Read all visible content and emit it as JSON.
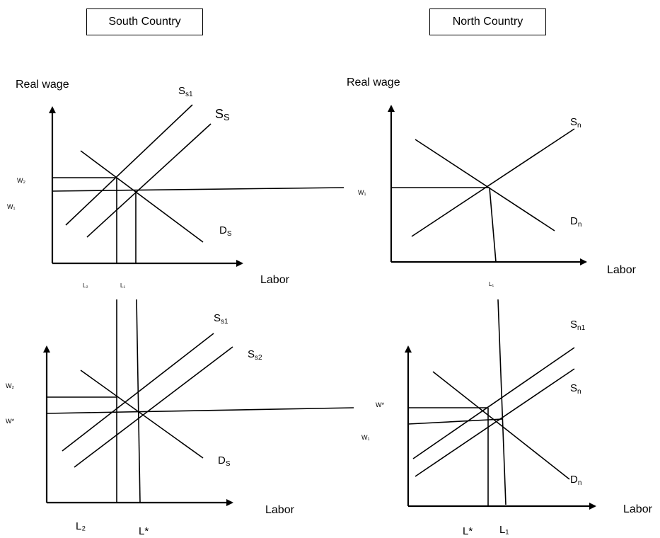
{
  "titles": {
    "south": "South Country",
    "north": "North Country"
  },
  "axes": {
    "y_label": "Real wage",
    "x_label": "Labor"
  },
  "south_top": {
    "supply1": {
      "main": "S",
      "sub": "s1"
    },
    "supply0": {
      "main": "S",
      "sub": "S"
    },
    "demand": {
      "main": "D",
      "sub": "S"
    },
    "w_high": "W₂",
    "w_low": "W₁",
    "l_left": "L₂",
    "l_right": "L₁"
  },
  "north_top": {
    "supply": {
      "main": "S",
      "sub": "n"
    },
    "demand": {
      "main": "D",
      "sub": "n"
    },
    "w": "W₁",
    "l": "L₁"
  },
  "south_bottom": {
    "supply1": {
      "main": "S",
      "sub": "s1"
    },
    "supply2": {
      "main": "S",
      "sub": "s2"
    },
    "demand": {
      "main": "D",
      "sub": "S"
    },
    "w_high": "W₂",
    "w_low": "W*",
    "l_left": "L₂",
    "l_right": "L*"
  },
  "north_bottom": {
    "supply1": {
      "main": "S",
      "sub": "n1"
    },
    "supply0": {
      "main": "S",
      "sub": "n"
    },
    "demand": {
      "main": "D",
      "sub": "n"
    },
    "w_high": "W*",
    "w_low": "W₁",
    "l_left": "L*",
    "l_right": "L₁"
  }
}
